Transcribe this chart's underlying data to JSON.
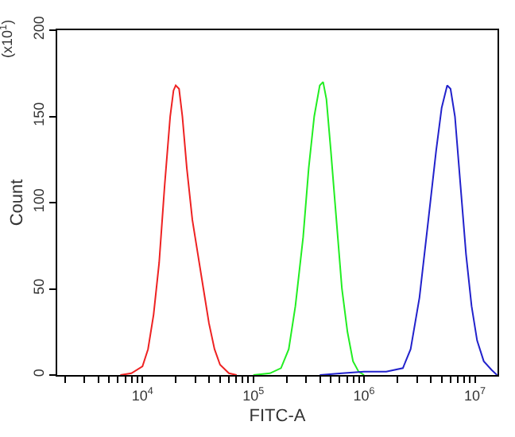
{
  "chart_data": {
    "type": "line",
    "xlabel": "FITC-A",
    "ylabel": "Count",
    "annotations": [
      "(x10$^{1}$)"
    ],
    "log": "x",
    "marker": "none",
    "line_style": "solid",
    "xlim": [
      1700,
      16000000
    ],
    "ylim": [
      0,
      200
    ],
    "yticks": [
      0,
      50,
      100,
      150,
      200
    ],
    "xticks": [
      {
        "value": 2000,
        "label": null
      },
      {
        "value": 3000,
        "label": null
      },
      {
        "value": 4000,
        "label": null
      },
      {
        "value": 5000,
        "label": null
      },
      {
        "value": 6000,
        "label": null
      },
      {
        "value": 7000,
        "label": null
      },
      {
        "value": 8000,
        "label": null
      },
      {
        "value": 9000,
        "label": null
      },
      {
        "value": 10000,
        "label": "10$^{4}$"
      },
      {
        "value": 20000,
        "label": null
      },
      {
        "value": 30000,
        "label": null
      },
      {
        "value": 40000,
        "label": null
      },
      {
        "value": 50000,
        "label": null
      },
      {
        "value": 60000,
        "label": null
      },
      {
        "value": 70000,
        "label": null
      },
      {
        "value": 80000,
        "label": null
      },
      {
        "value": 90000,
        "label": null
      },
      {
        "value": 100000,
        "label": "10$^{5}$"
      },
      {
        "value": 200000,
        "label": null
      },
      {
        "value": 300000,
        "label": null
      },
      {
        "value": 400000,
        "label": null
      },
      {
        "value": 500000,
        "label": null
      },
      {
        "value": 600000,
        "label": null
      },
      {
        "value": 700000,
        "label": null
      },
      {
        "value": 800000,
        "label": null
      },
      {
        "value": 900000,
        "label": null
      },
      {
        "value": 1000000,
        "label": "10$^{6}$"
      },
      {
        "value": 2000000,
        "label": null
      },
      {
        "value": 3000000,
        "label": null
      },
      {
        "value": 4000000,
        "label": null
      },
      {
        "value": 5000000,
        "label": null
      },
      {
        "value": 6000000,
        "label": null
      },
      {
        "value": 7000000,
        "label": null
      },
      {
        "value": 8000000,
        "label": null
      },
      {
        "value": 9000000,
        "label": null
      },
      {
        "value": 10000000,
        "label": "10$^{7}$"
      }
    ],
    "series": [
      {
        "color": "#ee2222",
        "x": [
          6310,
          7943,
          10000,
          11220,
          12590,
          14130,
          15850,
          17780,
          19050,
          19950,
          21380,
          22910,
          25120,
          28180,
          31620,
          35480,
          39810,
          44670,
          50120,
          60260,
          70790
        ],
        "values": [
          0,
          1,
          5,
          15,
          35,
          65,
          110,
          150,
          165,
          168,
          166,
          150,
          120,
          90,
          70,
          50,
          30,
          15,
          6,
          1,
          0
        ]
      },
      {
        "color": "#22ee22",
        "x": [
          100000,
          141300,
          177800,
          208900,
          239900,
          281800,
          316200,
          354800,
          398100,
          426600,
          457100,
          501200,
          562300,
          631000,
          707900,
          794300,
          891300,
          1000000
        ],
        "values": [
          0,
          1,
          4,
          15,
          40,
          80,
          120,
          150,
          168,
          170,
          160,
          130,
          90,
          50,
          25,
          8,
          2,
          0
        ]
      },
      {
        "color": "#2222cc",
        "x": [
          398100,
          631000,
          1000000,
          1585000,
          2239000,
          2630000,
          3162000,
          3802000,
          4467000,
          5012000,
          5623000,
          6026000,
          6607000,
          7413000,
          8318000,
          9333000,
          10470000,
          12020000,
          14130000,
          15850000
        ],
        "values": [
          0,
          1,
          2,
          2,
          4,
          15,
          45,
          90,
          130,
          155,
          168,
          166,
          150,
          110,
          70,
          40,
          20,
          8,
          3,
          0
        ]
      }
    ]
  }
}
